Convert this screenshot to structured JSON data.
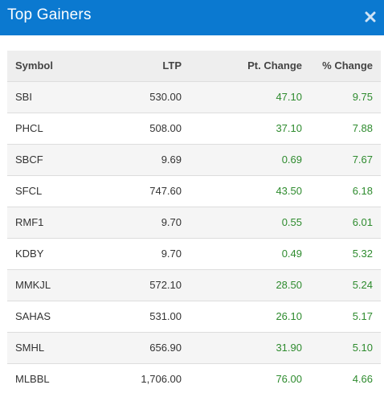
{
  "header": {
    "title": "Top Gainers",
    "close_icon": "close-icon"
  },
  "colors": {
    "header_bg": "#0b79d0",
    "gain_text": "#2e8b2e"
  },
  "table": {
    "columns": [
      "Symbol",
      "LTP",
      "Pt. Change",
      "% Change"
    ],
    "rows": [
      {
        "symbol": "SBI",
        "ltp": "530.00",
        "pt_change": "47.10",
        "pct_change": "9.75"
      },
      {
        "symbol": "PHCL",
        "ltp": "508.00",
        "pt_change": "37.10",
        "pct_change": "7.88"
      },
      {
        "symbol": "SBCF",
        "ltp": "9.69",
        "pt_change": "0.69",
        "pct_change": "7.67"
      },
      {
        "symbol": "SFCL",
        "ltp": "747.60",
        "pt_change": "43.50",
        "pct_change": "6.18"
      },
      {
        "symbol": "RMF1",
        "ltp": "9.70",
        "pt_change": "0.55",
        "pct_change": "6.01"
      },
      {
        "symbol": "KDBY",
        "ltp": "9.70",
        "pt_change": "0.49",
        "pct_change": "5.32"
      },
      {
        "symbol": "MMKJL",
        "ltp": "572.10",
        "pt_change": "28.50",
        "pct_change": "5.24"
      },
      {
        "symbol": "SAHAS",
        "ltp": "531.00",
        "pt_change": "26.10",
        "pct_change": "5.17"
      },
      {
        "symbol": "SMHL",
        "ltp": "656.90",
        "pt_change": "31.90",
        "pct_change": "5.10"
      },
      {
        "symbol": "MLBBL",
        "ltp": "1,706.00",
        "pt_change": "76.00",
        "pct_change": "4.66"
      }
    ]
  }
}
